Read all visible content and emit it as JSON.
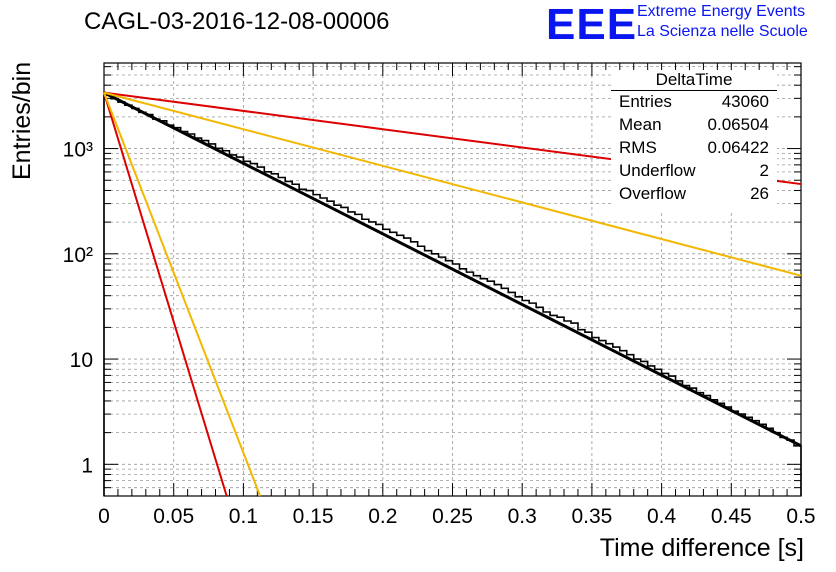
{
  "title": "CAGL-03-2016-12-08-00006",
  "logo": {
    "text": "EEE",
    "line1": "Extreme Energy Events",
    "line2": "La Scienza nelle Scuole",
    "color": "#0a16f0"
  },
  "stats": {
    "title": "DeltaTime",
    "rows": [
      {
        "label": "Entries",
        "value": "43060"
      },
      {
        "label": "Mean",
        "value": "0.06504"
      },
      {
        "label": "RMS",
        "value": "0.06422"
      },
      {
        "label": "Underflow",
        "value": "2"
      },
      {
        "label": "Overflow",
        "value": "26"
      }
    ]
  },
  "chart_data": {
    "type": "line",
    "title": "CAGL-03-2016-12-08-00006",
    "xlabel": "Time difference [s]",
    "ylabel": "Entries/bin",
    "xlim": [
      0,
      0.5
    ],
    "ylim": [
      0.5,
      6500
    ],
    "yscale": "log",
    "grid": true,
    "x_ticks": [
      "0",
      "0.05",
      "0.1",
      "0.15",
      "0.2",
      "0.25",
      "0.3",
      "0.35",
      "0.4",
      "0.45",
      "0.5"
    ],
    "y_ticks": [
      {
        "value": 1,
        "label": "1"
      },
      {
        "value": 10,
        "label": "10"
      },
      {
        "value": 100,
        "label": "10²"
      },
      {
        "value": 1000,
        "label": "10³"
      }
    ],
    "histogram": {
      "bin_width": 0.005,
      "color": "#000000",
      "values": [
        3218,
        2976,
        2763,
        2583,
        2405,
        2211,
        2105,
        1904,
        1836,
        1668,
        1578,
        1451,
        1375,
        1259,
        1190,
        1106,
        1005,
        953,
        870,
        830,
        757,
        720,
        667,
        601,
        575,
        531,
        487,
        458,
        410,
        399,
        365,
        339,
        316,
        290,
        276,
        250,
        237,
        213,
        201,
        190,
        171,
        160,
        150,
        141,
        130,
        118,
        107,
        100,
        93,
        86,
        80,
        72,
        67,
        62,
        58,
        55,
        51,
        47,
        43,
        39,
        36,
        34,
        31,
        28,
        26,
        25,
        23,
        22,
        19,
        18,
        16,
        15,
        14,
        13,
        12,
        11,
        10,
        9.5,
        8.6,
        8,
        7.3,
        6.9,
        6.2,
        5.6,
        5.3,
        4.8,
        4.5,
        4.1,
        3.8,
        3.5,
        3.2,
        3,
        2.8,
        2.6,
        2.4,
        2.2,
        2,
        1.8,
        1.7,
        1.5
      ]
    },
    "series": [
      {
        "color": "#000000",
        "values_at_x": {
          "x": [
            0,
            0.5
          ],
          "y": [
            3400,
            1.5
          ]
        }
      },
      {
        "color": "#dd0000",
        "values_at_x": {
          "x": [
            0,
            0.5
          ],
          "y": [
            3400,
            460
          ]
        }
      },
      {
        "color": "#f2b800",
        "values_at_x": {
          "x": [
            0,
            0.5
          ],
          "y": [
            3400,
            62
          ]
        }
      },
      {
        "color": "#dd0000",
        "values_at_x": {
          "x": [
            0,
            0.088
          ],
          "y": [
            3400,
            0.5
          ]
        }
      },
      {
        "color": "#f2b800",
        "values_at_x": {
          "x": [
            0,
            0.112
          ],
          "y": [
            3400,
            0.5
          ]
        }
      }
    ]
  }
}
